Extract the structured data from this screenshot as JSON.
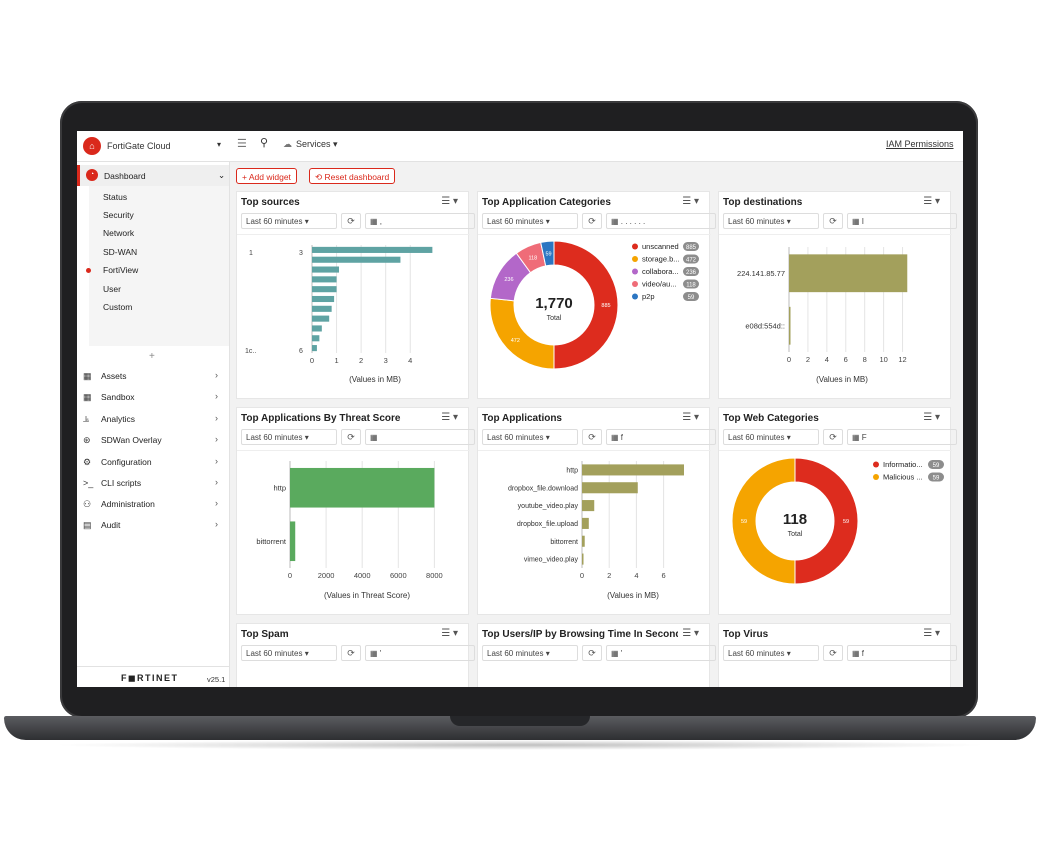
{
  "topbar": {
    "app_name": "FortiGate Cloud",
    "services_label": "Services",
    "iam_label": "IAM Permissions"
  },
  "sidebar": {
    "dashboard_label": "Dashboard",
    "dashboard_subitems": [
      "Status",
      "Security",
      "Network",
      "SD-WAN",
      "FortiView",
      "User",
      "Custom"
    ],
    "items": [
      {
        "label": "Assets",
        "icon": "grid-icon"
      },
      {
        "label": "Sandbox",
        "icon": "grid-icon"
      },
      {
        "label": "Analytics",
        "icon": "bar-chart-icon"
      },
      {
        "label": "SDWan Overlay",
        "icon": "network-icon"
      },
      {
        "label": "Configuration",
        "icon": "gear-icon"
      },
      {
        "label": "CLI scripts",
        "icon": "terminal-icon"
      },
      {
        "label": "Administration",
        "icon": "users-icon"
      },
      {
        "label": "Audit",
        "icon": "document-icon"
      }
    ],
    "footer_logo": "F◼RTINET",
    "version": "v25.1"
  },
  "toolbar": {
    "add_widget": "+ Add widget",
    "reset_dashboard": "⟲ Reset dashboard"
  },
  "widgets": {
    "top_sources": {
      "title": "Top sources",
      "range": "Last 60 minutes ▾",
      "xlabel": "(Values in MB)",
      "ticks": [
        "0",
        "1",
        "2",
        "3",
        "4"
      ],
      "label_top": "1",
      "label_top_right": "3",
      "label_bottom": "1c..",
      "label_bottom_right": "6"
    },
    "top_app_categories": {
      "title": "Top Application Categories",
      "range": "Last 60 minutes ▾",
      "total": "1,770",
      "total_label": "Total"
    },
    "top_destinations": {
      "title": "Top destinations",
      "range": "Last 60 minutes ▾",
      "filter": "I",
      "xlabel": "(Values in MB)",
      "ticks": [
        "0",
        "2",
        "4",
        "6",
        "8",
        "10",
        "12"
      ]
    },
    "top_apps_threat": {
      "title": "Top Applications By Threat Score",
      "range": "Last 60 minutes ▾",
      "xlabel": "(Values in Threat Score)",
      "ticks": [
        "0",
        "2000",
        "4000",
        "6000",
        "8000"
      ]
    },
    "top_applications": {
      "title": "Top Applications",
      "range": "Last 60 minutes ▾",
      "filter": "f",
      "xlabel": "(Values in MB)",
      "ticks": [
        "0",
        "2",
        "4",
        "6"
      ]
    },
    "top_web_categories": {
      "title": "Top Web Categories",
      "range": "Last 60 minutes ▾",
      "filter": "F",
      "total": "118",
      "total_label": "Total"
    },
    "top_spam": {
      "title": "Top Spam",
      "range": "Last 60 minutes ▾",
      "filter": "'"
    },
    "top_users_browsing": {
      "title": "Top Users/IP by Browsing Time In Seconds",
      "range": "Last 60 minutes ▾",
      "filter": "'"
    },
    "top_virus": {
      "title": "Top Virus",
      "range": "Last 60 minutes ▾",
      "filter": "f"
    }
  },
  "chart_data": [
    {
      "type": "bar",
      "title": "Top sources",
      "xlabel": "(Values in MB)",
      "xlim": [
        0,
        4.6
      ],
      "values": [
        4.9,
        3.6,
        1.1,
        1.0,
        1.0,
        0.9,
        0.8,
        0.7,
        0.4,
        0.3,
        0.2
      ],
      "color": "#5fa3a3"
    },
    {
      "type": "pie",
      "title": "Top Application Categories",
      "total": "1,770",
      "categories": [
        "unscanned",
        "storage.b...",
        "collabora...",
        "video/au...",
        "p2p"
      ],
      "values": [
        885,
        472,
        236,
        118,
        59
      ],
      "colors": [
        "#dd2c1e",
        "#f5a400",
        "#b367c9",
        "#ef6c78",
        "#2c76c2"
      ]
    },
    {
      "type": "bar",
      "title": "Top destinations",
      "xlabel": "(Values in MB)",
      "xlim": [
        0,
        13
      ],
      "categories": [
        "224.141.85.77",
        "e08d:554d::"
      ],
      "values": [
        12.5,
        0.15
      ],
      "color": "#a3a05c"
    },
    {
      "type": "bar",
      "title": "Top Applications By Threat Score",
      "xlabel": "(Values in Threat Score)",
      "xlim": [
        0,
        8200
      ],
      "categories": [
        "http",
        "bittorrent"
      ],
      "values": [
        8000,
        290
      ],
      "color": "#5aaa5e"
    },
    {
      "type": "bar",
      "title": "Top Applications",
      "xlabel": "(Values in MB)",
      "xlim": [
        0,
        7.5
      ],
      "categories": [
        "http",
        "dropbox_file.download",
        "youtube_video.play",
        "dropbox_file.upload",
        "bittorrent",
        "vimeo_video.play"
      ],
      "values": [
        7.5,
        4.1,
        0.9,
        0.5,
        0.2,
        0.1
      ],
      "color": "#a3a05c"
    },
    {
      "type": "pie",
      "title": "Top Web Categories",
      "total": "118",
      "categories": [
        "Informatio...",
        "Malicious ..."
      ],
      "values": [
        59,
        59
      ],
      "colors": [
        "#dd2c1e",
        "#f5a400"
      ]
    }
  ]
}
